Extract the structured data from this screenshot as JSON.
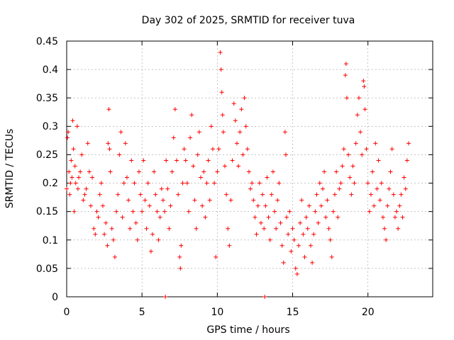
{
  "chart_data": {
    "type": "scatter",
    "title": "Day 302 of 2025, SRMTID for receiver tuva",
    "xlabel": "GPS time / hours",
    "ylabel": "SRMTID / TECUs",
    "xlim": [
      0,
      24.3
    ],
    "ylim": [
      0,
      0.45
    ],
    "x_ticks": [
      0,
      5,
      10,
      15,
      20
    ],
    "y_ticks": [
      0,
      0.05,
      0.1,
      0.15,
      0.2,
      0.25,
      0.3,
      0.35,
      0.4,
      0.45
    ],
    "x_tick_labels": [
      "0",
      "5",
      "10",
      "15",
      "20"
    ],
    "y_tick_labels": [
      "0",
      "0.05",
      "0.1",
      "0.15",
      "0.2",
      "0.25",
      "0.3",
      "0.35",
      "0.4",
      "0.45"
    ],
    "grid": true,
    "marker": "+",
    "color": "#ff0000",
    "series": [
      {
        "name": "SRMTID",
        "points": [
          [
            0.0,
            0.19
          ],
          [
            0.05,
            0.28
          ],
          [
            0.1,
            0.29
          ],
          [
            0.15,
            0.22
          ],
          [
            0.2,
            0.18
          ],
          [
            0.25,
            0.2
          ],
          [
            0.3,
            0.24
          ],
          [
            0.35,
            0.21
          ],
          [
            0.4,
            0.31
          ],
          [
            0.45,
            0.26
          ],
          [
            0.5,
            0.15
          ],
          [
            0.55,
            0.23
          ],
          [
            0.6,
            0.2
          ],
          [
            0.7,
            0.3
          ],
          [
            0.75,
            0.19
          ],
          [
            0.8,
            0.21
          ],
          [
            0.9,
            0.22
          ],
          [
            1.0,
            0.25
          ],
          [
            1.1,
            0.17
          ],
          [
            1.2,
            0.18
          ],
          [
            1.3,
            0.19
          ],
          [
            1.4,
            0.27
          ],
          [
            1.5,
            0.22
          ],
          [
            1.6,
            0.16
          ],
          [
            1.7,
            0.21
          ],
          [
            1.8,
            0.12
          ],
          [
            1.9,
            0.11
          ],
          [
            2.0,
            0.15
          ],
          [
            2.1,
            0.14
          ],
          [
            2.2,
            0.18
          ],
          [
            2.3,
            0.2
          ],
          [
            2.4,
            0.16
          ],
          [
            2.5,
            0.11
          ],
          [
            2.6,
            0.13
          ],
          [
            2.7,
            0.09
          ],
          [
            2.75,
            0.27
          ],
          [
            2.8,
            0.33
          ],
          [
            2.85,
            0.26
          ],
          [
            2.9,
            0.22
          ],
          [
            3.0,
            0.12
          ],
          [
            3.1,
            0.1
          ],
          [
            3.2,
            0.07
          ],
          [
            3.3,
            0.15
          ],
          [
            3.4,
            0.18
          ],
          [
            3.5,
            0.25
          ],
          [
            3.6,
            0.29
          ],
          [
            3.7,
            0.14
          ],
          [
            3.8,
            0.2
          ],
          [
            3.9,
            0.27
          ],
          [
            4.0,
            0.21
          ],
          [
            4.1,
            0.17
          ],
          [
            4.2,
            0.12
          ],
          [
            4.3,
            0.24
          ],
          [
            4.4,
            0.15
          ],
          [
            4.5,
            0.2
          ],
          [
            4.6,
            0.13
          ],
          [
            4.7,
            0.1
          ],
          [
            4.8,
            0.22
          ],
          [
            4.9,
            0.18
          ],
          [
            5.0,
            0.15
          ],
          [
            5.1,
            0.24
          ],
          [
            5.2,
            0.17
          ],
          [
            5.3,
            0.12
          ],
          [
            5.4,
            0.2
          ],
          [
            5.5,
            0.16
          ],
          [
            5.6,
            0.08
          ],
          [
            5.7,
            0.11
          ],
          [
            5.8,
            0.22
          ],
          [
            5.9,
            0.18
          ],
          [
            6.0,
            0.15
          ],
          [
            6.1,
            0.1
          ],
          [
            6.2,
            0.14
          ],
          [
            6.3,
            0.19
          ],
          [
            6.4,
            0.17
          ],
          [
            6.5,
            0.15
          ],
          [
            6.55,
            0.0
          ],
          [
            6.6,
            0.24
          ],
          [
            6.7,
            0.19
          ],
          [
            6.8,
            0.12
          ],
          [
            6.9,
            0.16
          ],
          [
            7.0,
            0.22
          ],
          [
            7.1,
            0.28
          ],
          [
            7.2,
            0.33
          ],
          [
            7.3,
            0.24
          ],
          [
            7.4,
            0.18
          ],
          [
            7.5,
            0.07
          ],
          [
            7.55,
            0.05
          ],
          [
            7.6,
            0.09
          ],
          [
            7.7,
            0.2
          ],
          [
            7.8,
            0.26
          ],
          [
            7.9,
            0.24
          ],
          [
            8.0,
            0.2
          ],
          [
            8.1,
            0.15
          ],
          [
            8.2,
            0.28
          ],
          [
            8.3,
            0.32
          ],
          [
            8.4,
            0.23
          ],
          [
            8.5,
            0.17
          ],
          [
            8.6,
            0.12
          ],
          [
            8.7,
            0.25
          ],
          [
            8.8,
            0.29
          ],
          [
            8.9,
            0.21
          ],
          [
            9.0,
            0.16
          ],
          [
            9.1,
            0.22
          ],
          [
            9.2,
            0.14
          ],
          [
            9.3,
            0.2
          ],
          [
            9.4,
            0.24
          ],
          [
            9.5,
            0.17
          ],
          [
            9.6,
            0.3
          ],
          [
            9.7,
            0.26
          ],
          [
            9.8,
            0.2
          ],
          [
            9.9,
            0.07
          ],
          [
            10.0,
            0.22
          ],
          [
            10.1,
            0.26
          ],
          [
            10.2,
            0.43
          ],
          [
            10.25,
            0.4
          ],
          [
            10.3,
            0.36
          ],
          [
            10.35,
            0.32
          ],
          [
            10.4,
            0.29
          ],
          [
            10.5,
            0.23
          ],
          [
            10.6,
            0.18
          ],
          [
            10.7,
            0.12
          ],
          [
            10.8,
            0.09
          ],
          [
            10.9,
            0.17
          ],
          [
            11.0,
            0.24
          ],
          [
            11.1,
            0.34
          ],
          [
            11.2,
            0.31
          ],
          [
            11.3,
            0.27
          ],
          [
            11.4,
            0.23
          ],
          [
            11.5,
            0.29
          ],
          [
            11.6,
            0.33
          ],
          [
            11.7,
            0.25
          ],
          [
            11.8,
            0.35
          ],
          [
            11.9,
            0.3
          ],
          [
            12.0,
            0.26
          ],
          [
            12.1,
            0.22
          ],
          [
            12.2,
            0.19
          ],
          [
            12.3,
            0.2
          ],
          [
            12.4,
            0.17
          ],
          [
            12.5,
            0.14
          ],
          [
            12.6,
            0.11
          ],
          [
            12.7,
            0.16
          ],
          [
            12.8,
            0.2
          ],
          [
            12.9,
            0.13
          ],
          [
            13.0,
            0.18
          ],
          [
            13.1,
            0.12
          ],
          [
            13.15,
            0.0
          ],
          [
            13.2,
            0.16
          ],
          [
            13.3,
            0.21
          ],
          [
            13.4,
            0.14
          ],
          [
            13.5,
            0.1
          ],
          [
            13.6,
            0.18
          ],
          [
            13.7,
            0.22
          ],
          [
            13.8,
            0.15
          ],
          [
            13.9,
            0.12
          ],
          [
            14.0,
            0.17
          ],
          [
            14.1,
            0.2
          ],
          [
            14.2,
            0.13
          ],
          [
            14.3,
            0.09
          ],
          [
            14.4,
            0.06
          ],
          [
            14.5,
            0.29
          ],
          [
            14.55,
            0.25
          ],
          [
            14.6,
            0.14
          ],
          [
            14.7,
            0.11
          ],
          [
            14.8,
            0.15
          ],
          [
            14.9,
            0.08
          ],
          [
            15.0,
            0.12
          ],
          [
            15.1,
            0.1
          ],
          [
            15.2,
            0.05
          ],
          [
            15.3,
            0.04
          ],
          [
            15.4,
            0.09
          ],
          [
            15.5,
            0.13
          ],
          [
            15.6,
            0.17
          ],
          [
            15.7,
            0.11
          ],
          [
            15.8,
            0.07
          ],
          [
            15.9,
            0.14
          ],
          [
            16.0,
            0.12
          ],
          [
            16.1,
            0.16
          ],
          [
            16.2,
            0.09
          ],
          [
            16.3,
            0.06
          ],
          [
            16.4,
            0.11
          ],
          [
            16.5,
            0.15
          ],
          [
            16.6,
            0.18
          ],
          [
            16.7,
            0.13
          ],
          [
            16.8,
            0.2
          ],
          [
            16.9,
            0.16
          ],
          [
            17.0,
            0.19
          ],
          [
            17.1,
            0.22
          ],
          [
            17.2,
            0.14
          ],
          [
            17.3,
            0.17
          ],
          [
            17.4,
            0.12
          ],
          [
            17.5,
            0.1
          ],
          [
            17.6,
            0.07
          ],
          [
            17.7,
            0.15
          ],
          [
            17.8,
            0.18
          ],
          [
            17.9,
            0.22
          ],
          [
            18.0,
            0.14
          ],
          [
            18.1,
            0.19
          ],
          [
            18.2,
            0.2
          ],
          [
            18.3,
            0.23
          ],
          [
            18.4,
            0.26
          ],
          [
            18.5,
            0.39
          ],
          [
            18.55,
            0.41
          ],
          [
            18.6,
            0.35
          ],
          [
            18.7,
            0.25
          ],
          [
            18.8,
            0.21
          ],
          [
            18.9,
            0.18
          ],
          [
            19.0,
            0.23
          ],
          [
            19.1,
            0.2
          ],
          [
            19.2,
            0.27
          ],
          [
            19.3,
            0.32
          ],
          [
            19.4,
            0.35
          ],
          [
            19.5,
            0.29
          ],
          [
            19.6,
            0.25
          ],
          [
            19.7,
            0.38
          ],
          [
            19.75,
            0.37
          ],
          [
            19.8,
            0.33
          ],
          [
            19.9,
            0.26
          ],
          [
            20.0,
            0.2
          ],
          [
            20.1,
            0.15
          ],
          [
            20.2,
            0.18
          ],
          [
            20.3,
            0.22
          ],
          [
            20.4,
            0.16
          ],
          [
            20.5,
            0.27
          ],
          [
            20.6,
            0.19
          ],
          [
            20.7,
            0.24
          ],
          [
            20.8,
            0.17
          ],
          [
            20.9,
            0.2
          ],
          [
            21.0,
            0.14
          ],
          [
            21.1,
            0.12
          ],
          [
            21.2,
            0.1
          ],
          [
            21.3,
            0.16
          ],
          [
            21.4,
            0.19
          ],
          [
            21.5,
            0.22
          ],
          [
            21.6,
            0.26
          ],
          [
            21.7,
            0.18
          ],
          [
            21.8,
            0.14
          ],
          [
            21.9,
            0.15
          ],
          [
            22.0,
            0.12
          ],
          [
            22.1,
            0.16
          ],
          [
            22.2,
            0.18
          ],
          [
            22.3,
            0.14
          ],
          [
            22.4,
            0.21
          ],
          [
            22.5,
            0.19
          ],
          [
            22.6,
            0.24
          ],
          [
            22.7,
            0.27
          ]
        ]
      }
    ]
  }
}
